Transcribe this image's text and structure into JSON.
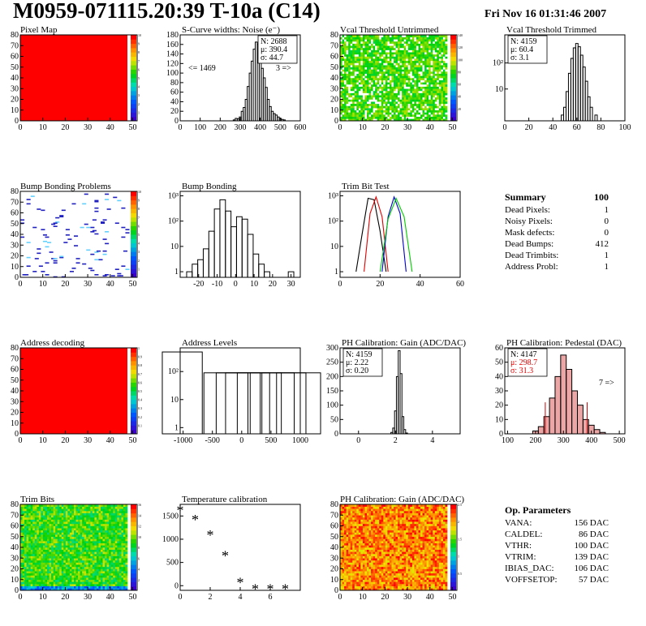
{
  "header": {
    "title": "M0959-071115.20:39 T-10a (C14)",
    "date": "Fri Nov 16 01:31:46 2007"
  },
  "summary": {
    "title": "Summary",
    "value": "100",
    "rows": [
      {
        "label": "Dead Pixels:",
        "value": "1"
      },
      {
        "label": "Noisy Pixels:",
        "value": "0"
      },
      {
        "label": "Mask defects:",
        "value": "0"
      },
      {
        "label": "Dead Bumps:",
        "value": "412"
      },
      {
        "label": "Dead Trimbits:",
        "value": "1"
      },
      {
        "label": "Address Probl:",
        "value": "1"
      }
    ]
  },
  "op_parameters": {
    "title": "Op. Parameters",
    "rows": [
      {
        "label": "VANA:",
        "value": "156 DAC"
      },
      {
        "label": "CALDEL:",
        "value": "86 DAC"
      },
      {
        "label": "VTHR:",
        "value": "100 DAC"
      },
      {
        "label": "VTRIM:",
        "value": "139 DAC"
      },
      {
        "label": "IBIAS_DAC:",
        "value": "106 DAC"
      },
      {
        "label": "VOFFSETOP:",
        "value": "57 DAC"
      }
    ]
  },
  "colors": {
    "map_red": "#ff0000",
    "hist_line": "#000000",
    "trim_red": "#e00000",
    "trim_blue": "#0000cc",
    "trim_green": "#00cc00",
    "ped_fill": "#cc0000"
  },
  "chart_data": [
    {
      "id": "pixel_map",
      "type": "heatmap",
      "title": "Pixel Map",
      "xlim": [
        0,
        52
      ],
      "ylim": [
        0,
        80
      ],
      "xticks": [
        "0",
        "10",
        "20",
        "30",
        "40",
        "50"
      ],
      "yticks": [
        "0",
        "10",
        "20",
        "30",
        "40",
        "50",
        "60",
        "70",
        "80"
      ],
      "zscale": [
        "1",
        "2",
        "3",
        "4",
        "5",
        "6",
        "7",
        "8",
        "9",
        "10"
      ],
      "fill": "uniform red (all pixels alive)"
    },
    {
      "id": "scurve",
      "type": "bar",
      "title": "S-Curve widths: Noise (e⁻)",
      "xlim": [
        0,
        600
      ],
      "ylim": [
        0,
        180
      ],
      "xticks": [
        "0",
        "100",
        "200",
        "300",
        "400",
        "500",
        "600"
      ],
      "yticks": [
        "0",
        "20",
        "40",
        "60",
        "80",
        "100",
        "120",
        "140",
        "160",
        "180"
      ],
      "stats": [
        "N: 2688",
        "μ: 390.4",
        "σ: 44.7"
      ],
      "annotations": [
        "<= 1469",
        "3 =>"
      ],
      "x": [
        270,
        280,
        290,
        300,
        310,
        320,
        330,
        340,
        350,
        360,
        370,
        380,
        390,
        400,
        410,
        420,
        430,
        440,
        450,
        460,
        470,
        480,
        490,
        500,
        510,
        520
      ],
      "values": [
        2,
        5,
        4,
        8,
        20,
        28,
        45,
        72,
        100,
        125,
        150,
        165,
        160,
        145,
        110,
        90,
        70,
        45,
        30,
        20,
        15,
        12,
        8,
        5,
        3,
        2
      ]
    },
    {
      "id": "vcal_untrimmed",
      "type": "heatmap",
      "title": "Vcal Threshold Untrimmed",
      "xlim": [
        0,
        52
      ],
      "ylim": [
        0,
        80
      ],
      "xticks": [
        "0",
        "10",
        "20",
        "30",
        "40",
        "50"
      ],
      "yticks": [
        "0",
        "10",
        "20",
        "30",
        "40",
        "50",
        "60",
        "70",
        "80"
      ],
      "zscale": [
        "20",
        "40",
        "60",
        "80",
        "100",
        "120",
        "140"
      ]
    },
    {
      "id": "vcal_trimmed",
      "type": "bar",
      "title": "Vcal Threshold Trimmed",
      "xlim": [
        0,
        100
      ],
      "ylog": true,
      "xticks": [
        "0",
        "20",
        "40",
        "60",
        "80",
        "100"
      ],
      "yticks": [
        "10",
        "10²"
      ],
      "stats": [
        "N: 4159",
        "μ: 60.4",
        "σ: 3.1"
      ],
      "x": [
        48,
        50,
        52,
        54,
        56,
        58,
        60,
        62,
        64,
        66,
        68,
        70,
        72,
        76
      ],
      "values": [
        1,
        2,
        8,
        40,
        150,
        380,
        560,
        420,
        200,
        70,
        20,
        5,
        2,
        1
      ]
    },
    {
      "id": "bump_map",
      "type": "heatmap",
      "title": "Bump Bonding Problems",
      "xlim": [
        0,
        52
      ],
      "ylim": [
        0,
        80
      ],
      "xticks": [
        "0",
        "10",
        "20",
        "30",
        "40",
        "50"
      ],
      "yticks": [
        "0",
        "10",
        "20",
        "30",
        "40",
        "50",
        "60",
        "70",
        "80"
      ],
      "zscale": [
        "1",
        "2",
        "3",
        "4",
        "5",
        "6",
        "7",
        "8",
        "9",
        "10"
      ]
    },
    {
      "id": "bump_bonding",
      "type": "bar",
      "title": "Bump Bonding",
      "xlim": [
        -30,
        35
      ],
      "ylog": true,
      "xticks": [
        "-20",
        "-10",
        "0",
        "10",
        "20",
        "30"
      ],
      "yticks": [
        "1",
        "10",
        "10²",
        "10³"
      ],
      "x": [
        -25,
        -22,
        -19,
        -16,
        -13,
        -10,
        -7,
        -4,
        -1,
        2,
        5,
        8,
        11,
        14,
        17,
        30
      ],
      "values": [
        1,
        2,
        3,
        8,
        40,
        300,
        700,
        250,
        60,
        150,
        120,
        30,
        5,
        2,
        1,
        1
      ]
    },
    {
      "id": "trim_bit_test",
      "type": "line",
      "title": "Trim Bit Test",
      "xlim": [
        0,
        60
      ],
      "ylog": true,
      "xticks": [
        "0",
        "20",
        "40",
        "60"
      ],
      "yticks": [
        "1",
        "10",
        "10²",
        "10³"
      ],
      "series": [
        {
          "color": "#000000",
          "x": [
            8,
            11,
            14,
            17,
            20,
            23
          ],
          "values": [
            1,
            30,
            800,
            700,
            40,
            1
          ]
        },
        {
          "color": "#e00000",
          "x": [
            12,
            15,
            18,
            21,
            24
          ],
          "values": [
            1,
            200,
            900,
            150,
            1
          ]
        },
        {
          "color": "#0000cc",
          "x": [
            21,
            24,
            27,
            30,
            33
          ],
          "values": [
            1,
            150,
            900,
            200,
            1
          ]
        },
        {
          "color": "#00cc00",
          "x": [
            20,
            24,
            28,
            32,
            36
          ],
          "values": [
            1,
            120,
            800,
            150,
            1
          ]
        }
      ]
    },
    {
      "id": "address_decoding",
      "type": "heatmap",
      "title": "Address decoding",
      "xlim": [
        0,
        52
      ],
      "ylim": [
        0,
        80
      ],
      "xticks": [
        "0",
        "10",
        "20",
        "30",
        "40",
        "50"
      ],
      "yticks": [
        "0",
        "10",
        "20",
        "30",
        "40",
        "50",
        "60",
        "70",
        "80"
      ],
      "zscale": [
        "0.1",
        "0.2",
        "0.3",
        "0.4",
        "0.5",
        "0.6",
        "0.7",
        "0.8",
        "0.9",
        "1"
      ]
    },
    {
      "id": "address_levels",
      "type": "bar",
      "title": "Address Levels",
      "xlim": [
        -1050,
        1000
      ],
      "ylog": true,
      "xticks": [
        "-1000",
        "-500",
        "0",
        "500",
        "1000"
      ],
      "yticks": [
        "1",
        "10",
        "10²"
      ],
      "x": [
        -1000,
        -290,
        -80,
        80,
        280,
        500,
        700,
        950
      ],
      "values": [
        500,
        90,
        90,
        90,
        90,
        90,
        90,
        90
      ]
    },
    {
      "id": "ph_gain",
      "type": "bar",
      "title": "PH Calibration: Gain (ADC/DAC)",
      "xlim": [
        -1,
        5.5
      ],
      "ylim": [
        0,
        300
      ],
      "xticks": [
        "0",
        "2",
        "4"
      ],
      "yticks": [
        "0",
        "50",
        "100",
        "150",
        "200",
        "250",
        "300"
      ],
      "stats": [
        "N: 4159",
        "μ: 2.22",
        "σ: 0.20"
      ],
      "x": [
        1.8,
        1.9,
        2.0,
        2.1,
        2.2,
        2.3,
        2.4,
        2.5,
        2.6
      ],
      "values": [
        5,
        20,
        80,
        200,
        290,
        210,
        60,
        15,
        3
      ]
    },
    {
      "id": "ph_pedestal",
      "type": "bar",
      "title": "PH Calibration: Pedestal (DAC)",
      "xlim": [
        90,
        520
      ],
      "ylim": [
        0,
        60
      ],
      "xticks": [
        "100",
        "200",
        "300",
        "400",
        "500"
      ],
      "yticks": [
        "0",
        "10",
        "20",
        "30",
        "40",
        "50",
        "60"
      ],
      "stats": [
        "N: 4147",
        "μ: 298.7",
        "σ: 31.3"
      ],
      "annotations": [
        "7 =>"
      ],
      "x": [
        200,
        220,
        240,
        260,
        280,
        300,
        320,
        340,
        360,
        380,
        400,
        420,
        440
      ],
      "values": [
        2,
        5,
        12,
        25,
        40,
        55,
        45,
        30,
        20,
        10,
        6,
        3,
        1
      ]
    },
    {
      "id": "trim_bits",
      "type": "heatmap",
      "title": "Trim Bits",
      "xlim": [
        0,
        52
      ],
      "ylim": [
        0,
        80
      ],
      "xticks": [
        "0",
        "10",
        "20",
        "30",
        "40",
        "50"
      ],
      "yticks": [
        "0",
        "10",
        "20",
        "30",
        "40",
        "50",
        "60",
        "70",
        "80"
      ],
      "zscale": [
        "2",
        "4",
        "6",
        "8",
        "10",
        "12",
        "14",
        "16"
      ]
    },
    {
      "id": "temperature",
      "type": "scatter",
      "title": "Temperature calibration",
      "xlim": [
        0,
        8
      ],
      "ylim": [
        -100,
        1750
      ],
      "xticks": [
        "0",
        "2",
        "4",
        "6"
      ],
      "yticks": [
        "0",
        "500",
        "1000",
        "1500"
      ],
      "x": [
        0,
        1,
        2,
        3,
        4,
        5,
        6,
        7
      ],
      "values": [
        1650,
        1450,
        1120,
        680,
        100,
        -40,
        -40,
        -40
      ]
    },
    {
      "id": "ph_gain_map",
      "type": "heatmap",
      "title": "PH Calibration: Gain (ADC/DAC)",
      "xlim": [
        0,
        52
      ],
      "ylim": [
        0,
        80
      ],
      "xticks": [
        "0",
        "10",
        "20",
        "30",
        "40",
        "50"
      ],
      "yticks": [
        "0",
        "10",
        "20",
        "30",
        "40",
        "50",
        "60",
        "70",
        "80"
      ],
      "zscale": [
        "0.5",
        "1",
        "1.5",
        "2",
        "2.5"
      ]
    }
  ]
}
